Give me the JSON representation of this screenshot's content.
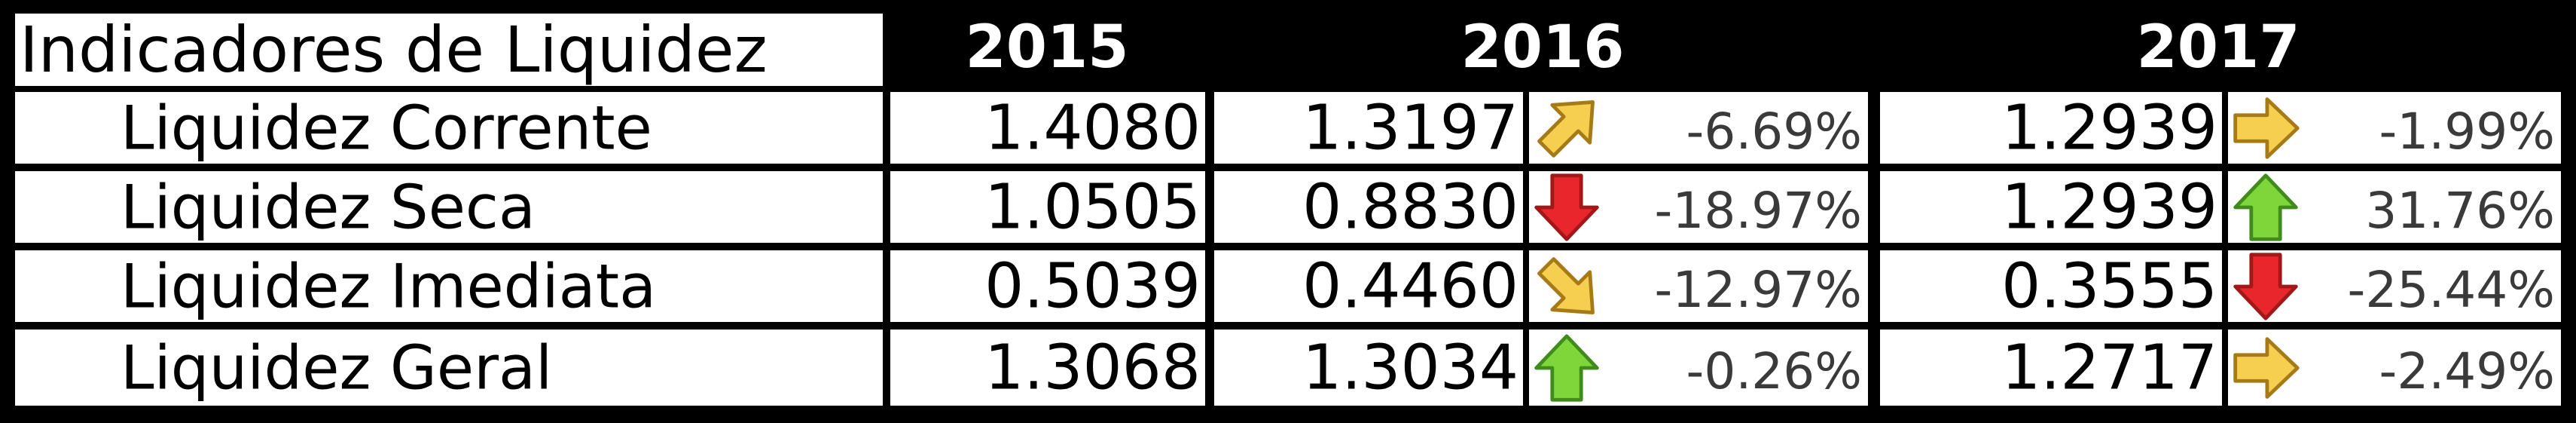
{
  "header": {
    "title": "Indicadores de Liquidez",
    "years": [
      "2015",
      "2016",
      "2017"
    ]
  },
  "rows": [
    {
      "name": "Liquidez Corrente",
      "v2015": "1.4080",
      "v2016": "1.3197",
      "arrow2016": "arrow-up-right-icon",
      "pct2016": "-6.69%",
      "v2017": "1.2939",
      "arrow2017": "arrow-right-icon",
      "pct2017": "-1.99%"
    },
    {
      "name": "Liquidez Seca",
      "v2015": "1.0505",
      "v2016": "0.8830",
      "arrow2016": "arrow-down-icon",
      "pct2016": "-18.97%",
      "v2017": "1.2939",
      "arrow2017": "arrow-up-icon",
      "pct2017": "31.76%"
    },
    {
      "name": "Liquidez Imediata",
      "v2015": "0.5039",
      "v2016": "0.4460",
      "arrow2016": "arrow-down-right-icon",
      "pct2016": "-12.97%",
      "v2017": "0.3555",
      "arrow2017": "arrow-down-icon",
      "pct2017": "-25.44%"
    },
    {
      "name": "Liquidez Geral",
      "v2015": "1.3068",
      "v2016": "1.3034",
      "arrow2016": "arrow-up-icon",
      "pct2016": "-0.26%",
      "v2017": "1.2717",
      "arrow2017": "arrow-right-icon",
      "pct2017": "-2.49%"
    }
  ],
  "colors": {
    "yellow_fill": "#f6cf50",
    "yellow_stroke": "#a77a18",
    "red_fill": "#e8262b",
    "red_stroke": "#a01818",
    "green_fill": "#7fd63b",
    "green_stroke": "#3f8c1c",
    "percent_text": "#3a3a3a"
  }
}
